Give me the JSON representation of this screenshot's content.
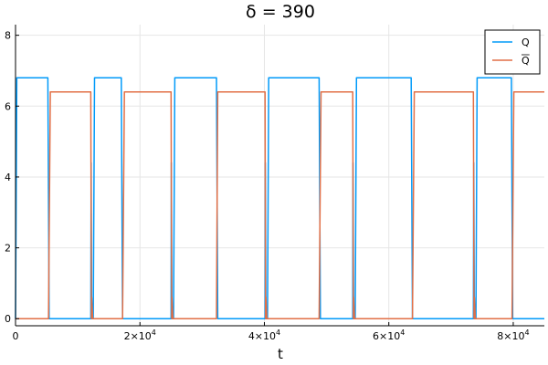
{
  "chart_data": {
    "type": "line",
    "title": "δ =  390",
    "xlabel": "t",
    "ylabel": "",
    "xlim": [
      0,
      85000
    ],
    "ylim": [
      -0.2,
      8.3
    ],
    "grid": true,
    "legend_position": "top-right",
    "x_ticks": [
      0,
      20000,
      40000,
      60000,
      80000
    ],
    "x_tick_labels": [
      {
        "text": "0",
        "exp": ""
      },
      {
        "text": "2×10",
        "exp": "4"
      },
      {
        "text": "4×10",
        "exp": "4"
      },
      {
        "text": "6×10",
        "exp": "4"
      },
      {
        "text": "8×10",
        "exp": "4"
      }
    ],
    "y_ticks": [
      0,
      2,
      4,
      6,
      8
    ],
    "y_tick_labels": [
      "0",
      "2",
      "4",
      "6",
      "8"
    ],
    "series": [
      {
        "name": "Q",
        "color": "#009af9",
        "x": [
          0,
          200,
          5200,
          5400,
          12100,
          12150,
          12250,
          12300,
          12500,
          12700,
          17000,
          17200,
          25000,
          25050,
          25150,
          25200,
          25400,
          25600,
          32300,
          32500,
          40100,
          40150,
          40250,
          40300,
          40500,
          40700,
          48800,
          49000,
          54200,
          54250,
          54350,
          54400,
          54600,
          54800,
          63600,
          63800,
          73600,
          73650,
          73750,
          73800,
          74000,
          74200,
          79700,
          79900,
          85000
        ],
        "y": [
          0,
          6.8,
          6.8,
          0,
          0,
          4.4,
          0,
          0,
          0,
          6.8,
          6.8,
          0,
          0,
          4.4,
          0,
          0,
          0,
          6.8,
          6.8,
          0,
          0,
          4.4,
          0,
          0,
          0,
          6.8,
          6.8,
          0,
          0,
          4.4,
          0,
          0,
          0,
          6.8,
          6.8,
          0,
          0,
          4.4,
          0,
          0,
          0,
          6.8,
          6.8,
          0,
          0
        ]
      },
      {
        "name": "Q",
        "overline": true,
        "color": "#e26f46",
        "x": [
          0,
          5300,
          5600,
          12100,
          12200,
          12250,
          12400,
          17200,
          17500,
          25000,
          25100,
          25150,
          25300,
          32300,
          32500,
          40100,
          40200,
          40250,
          40400,
          48800,
          49100,
          54200,
          54300,
          54350,
          54500,
          63800,
          64100,
          73600,
          73700,
          73750,
          73900,
          79800,
          80100,
          85000
        ],
        "y": [
          0,
          0,
          6.4,
          6.4,
          0,
          0.6,
          0,
          0,
          6.4,
          6.4,
          0,
          0.6,
          0,
          0,
          6.4,
          6.4,
          0,
          0.6,
          0,
          0,
          6.4,
          6.4,
          0,
          0.6,
          0,
          0,
          6.4,
          6.4,
          0,
          0.6,
          0,
          0,
          6.4,
          6.4
        ]
      }
    ]
  }
}
